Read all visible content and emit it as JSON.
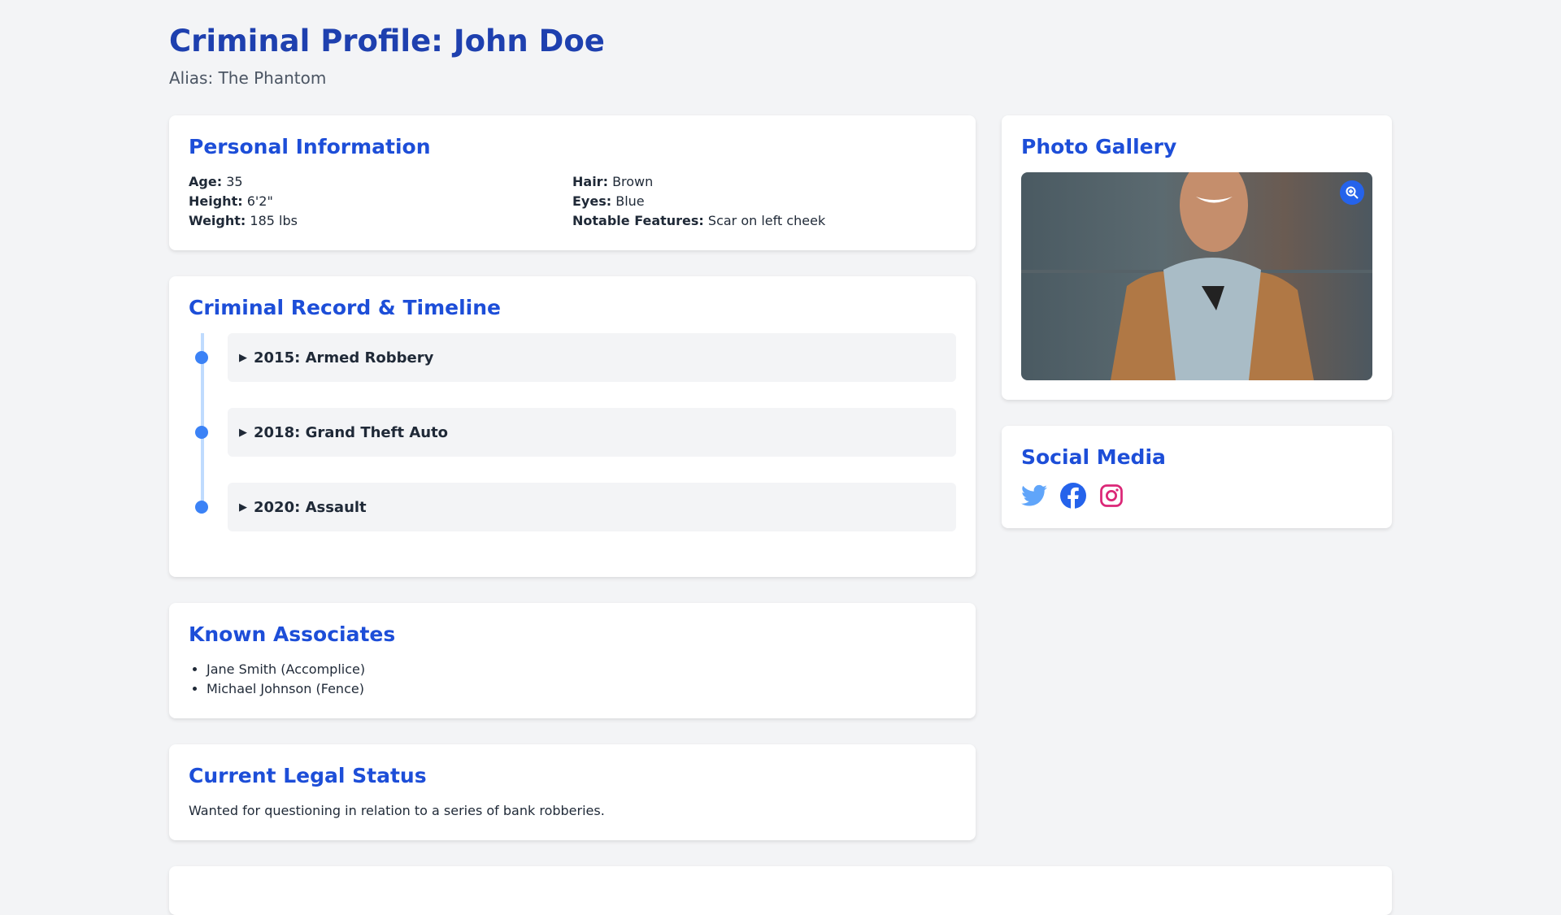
{
  "header": {
    "title": "Criminal Profile: John Doe",
    "alias": "Alias: The Phantom"
  },
  "personal": {
    "title": "Personal Information",
    "fields": [
      {
        "label": "Age:",
        "value": "35"
      },
      {
        "label": "Hair:",
        "value": "Brown"
      },
      {
        "label": "Height:",
        "value": "6'2\""
      },
      {
        "label": "Eyes:",
        "value": "Blue"
      },
      {
        "label": "Weight:",
        "value": "185 lbs"
      },
      {
        "label": "Notable Features:",
        "value": "Scar on left cheek"
      }
    ]
  },
  "record": {
    "title": "Criminal Record & Timeline",
    "items": [
      "2015: Armed Robbery",
      "2018: Grand Theft Auto",
      "2020: Assault"
    ]
  },
  "associates": {
    "title": "Known Associates",
    "items": [
      "Jane Smith (Accomplice)",
      "Michael Johnson (Fence)"
    ]
  },
  "legal": {
    "title": "Current Legal Status",
    "text": "Wanted for questioning in relation to a series of bank robberies."
  },
  "gallery": {
    "title": "Photo Gallery",
    "zoom_icon": "zoom-in-icon"
  },
  "social": {
    "title": "Social Media",
    "icons": [
      "twitter-icon",
      "facebook-icon",
      "instagram-icon"
    ],
    "colors": {
      "twitter": "#60a5fa",
      "facebook": "#2563eb",
      "instagram": "#db2777"
    }
  }
}
